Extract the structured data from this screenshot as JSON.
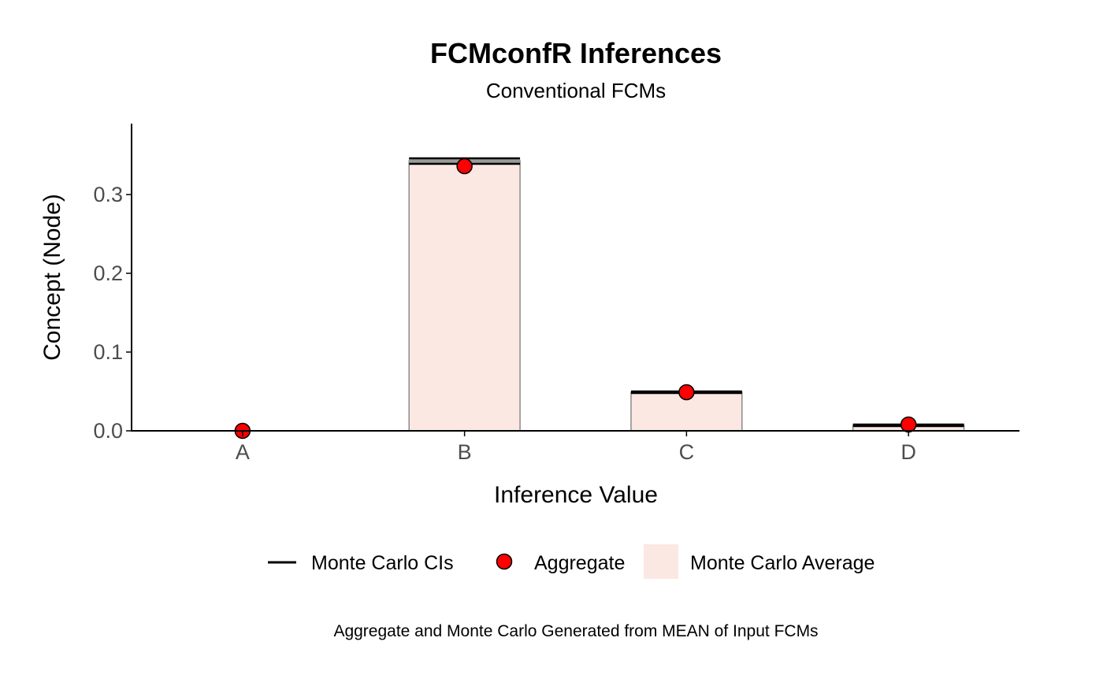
{
  "chart_data": {
    "type": "bar",
    "title": "FCMconfR Inferences",
    "subtitle": "Conventional FCMs",
    "xlabel": "Inference Value",
    "ylabel": "Concept (Node)",
    "caption": "Aggregate and Monte Carlo Generated from MEAN of Input FCMs",
    "categories": [
      "A",
      "B",
      "C",
      "D"
    ],
    "ylim": [
      0,
      0.39
    ],
    "yticks": [
      0.0,
      0.1,
      0.2,
      0.3
    ],
    "ytick_labels": [
      "0.0",
      "0.1",
      "0.2",
      "0.3"
    ],
    "grid": false,
    "legend_position": "bottom",
    "series": [
      {
        "name": "Monte Carlo Average",
        "kind": "bar",
        "values": [
          0.0,
          0.343,
          0.049,
          0.007
        ],
        "color": "#FBE8E2"
      },
      {
        "name": "Monte Carlo CIs",
        "kind": "errorbar",
        "lower": [
          0.0,
          0.339,
          0.048,
          0.006
        ],
        "upper": [
          0.0,
          0.346,
          0.05,
          0.008
        ],
        "color": "#000000"
      },
      {
        "name": "Aggregate",
        "kind": "point",
        "values": [
          0.0,
          0.336,
          0.049,
          0.008
        ],
        "color": "#FF0000"
      }
    ],
    "legend": [
      {
        "label": "Monte Carlo CIs",
        "type": "line"
      },
      {
        "label": "Aggregate",
        "type": "point"
      },
      {
        "label": "Monte Carlo Average",
        "type": "bar"
      }
    ]
  }
}
